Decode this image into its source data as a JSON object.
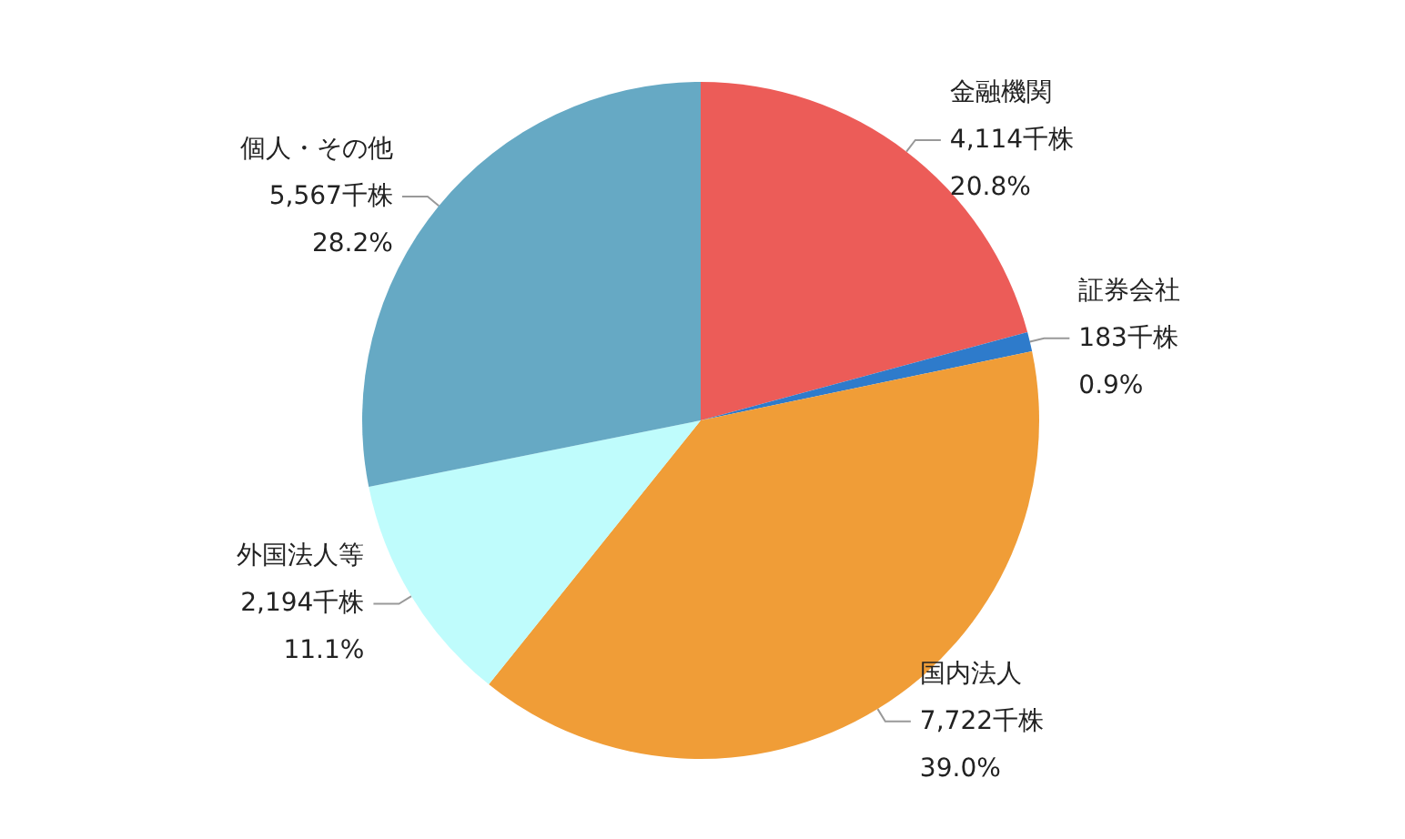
{
  "chart_data": {
    "type": "pie",
    "categories": [
      "金融機関",
      "証券会社",
      "国内法人",
      "外国法人等",
      "個人・その他"
    ],
    "values": [
      4114,
      183,
      7722,
      2194,
      5567
    ],
    "value_labels": [
      "4,114千株\n20.8%",
      "183千株\n0.9%",
      "7,722千株\n39.0%",
      "2,194千株\n11.1%",
      "5,567千株\n28.2%"
    ],
    "colors": [
      "#ec5c58",
      "#2e7bcb",
      "#f09d37",
      "#bffcfc",
      "#66a9c4"
    ]
  }
}
